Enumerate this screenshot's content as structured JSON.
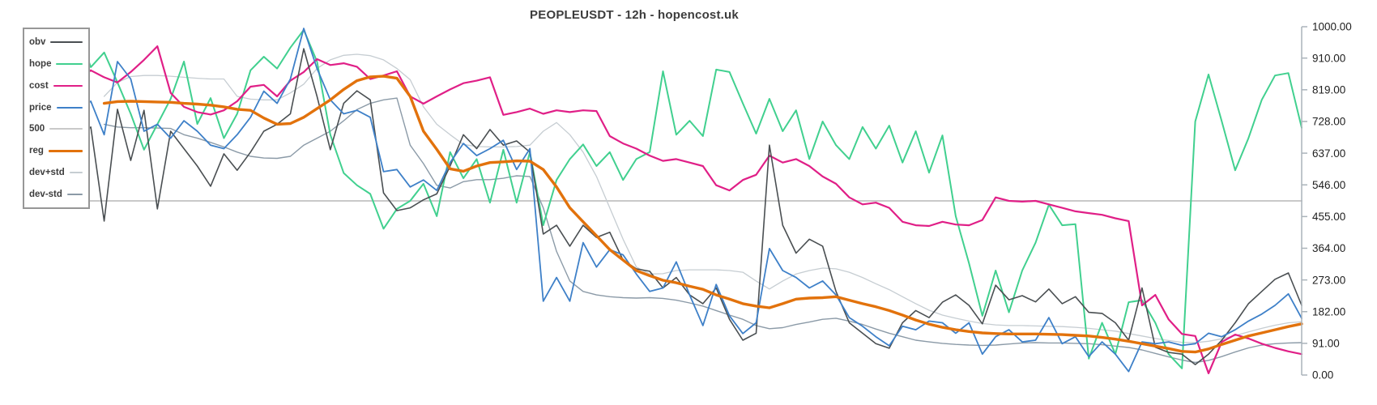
{
  "chart_data": {
    "type": "line",
    "title": "PEOPLEUSDT - 12h - hopencost.uk",
    "background": "#ffffff",
    "grid": false,
    "x_axis": {
      "labels_visible": false,
      "point_count": 97
    },
    "y_axis": {
      "side": "right",
      "min": 0,
      "max": 1000,
      "axis_color": "#aab3ba",
      "tick_values": [
        0,
        91,
        182,
        273,
        364,
        455,
        546,
        637,
        728,
        819,
        910,
        1000
      ],
      "tick_labels": [
        "0.00",
        "91.00",
        "182.00",
        "273.00",
        "364.00",
        "455.00",
        "546.00",
        "637.00",
        "728.00",
        "819.00",
        "910.00",
        "1000.00"
      ]
    },
    "legend": {
      "position": "top-left",
      "items": [
        "obv",
        "hope",
        "cost",
        "price",
        "500",
        "reg",
        "dev+std",
        "dev-std"
      ]
    },
    "series": [
      {
        "name": "obv",
        "color": "#4a4f52",
        "width": 1.6,
        "z": 6,
        "values": [
          650,
          580,
          620,
          560,
          680,
          712,
          442,
          763,
          616,
          760,
          477,
          700,
          650,
          600,
          542,
          635,
          588,
          640,
          700,
          720,
          750,
          937,
          800,
          647,
          780,
          816,
          790,
          523,
          472,
          480,
          503,
          520,
          600,
          690,
          650,
          705,
          660,
          672,
          640,
          405,
          430,
          370,
          430,
          395,
          410,
          330,
          305,
          298,
          250,
          280,
          230,
          205,
          250,
          160,
          100,
          120,
          660,
          430,
          350,
          390,
          370,
          240,
          150,
          120,
          90,
          77,
          150,
          185,
          165,
          209,
          230,
          200,
          147,
          258,
          216,
          228,
          210,
          247,
          205,
          225,
          180,
          177,
          150,
          100,
          250,
          80,
          65,
          60,
          30,
          60,
          100,
          150,
          205,
          240,
          275,
          293,
          200
        ]
      },
      {
        "name": "hope",
        "color": "#41d08f",
        "width": 2,
        "z": 4,
        "values": [
          940,
          900,
          985,
          940,
          990,
          884,
          926,
          840,
          750,
          647,
          720,
          793,
          900,
          721,
          795,
          680,
          750,
          875,
          914,
          880,
          940,
          991,
          900,
          690,
          580,
          545,
          520,
          420,
          477,
          500,
          549,
          456,
          640,
          565,
          620,
          495,
          647,
          495,
          640,
          430,
          560,
          620,
          662,
          600,
          640,
          560,
          620,
          640,
          872,
          690,
          730,
          686,
          877,
          870,
          780,
          693,
          793,
          700,
          760,
          620,
          728,
          660,
          620,
          712,
          650,
          716,
          610,
          700,
          581,
          688,
          456,
          321,
          170,
          300,
          180,
          300,
          380,
          489,
          430,
          433,
          47,
          150,
          60,
          209,
          215,
          150,
          60,
          19,
          728,
          863,
          728,
          588,
          680,
          790,
          860,
          867,
          710
        ]
      },
      {
        "name": "cost",
        "color": "#e01f87",
        "width": 2.2,
        "z": 5,
        "values": [
          885,
          860,
          880,
          855,
          845,
          875,
          855,
          840,
          870,
          905,
          944,
          810,
          770,
          755,
          748,
          760,
          786,
          828,
          833,
          800,
          845,
          870,
          907,
          890,
          895,
          885,
          850,
          860,
          872,
          800,
          779,
          800,
          820,
          838,
          845,
          855,
          747,
          755,
          765,
          750,
          760,
          755,
          760,
          758,
          686,
          665,
          650,
          630,
          615,
          620,
          610,
          600,
          545,
          530,
          560,
          575,
          630,
          610,
          620,
          600,
          570,
          549,
          510,
          490,
          495,
          480,
          440,
          430,
          428,
          440,
          432,
          430,
          445,
          510,
          500,
          498,
          500,
          490,
          480,
          470,
          465,
          460,
          450,
          442,
          200,
          230,
          160,
          118,
          112,
          5,
          95,
          116,
          105,
          90,
          78,
          68,
          60
        ]
      },
      {
        "name": "price",
        "color": "#3e80c8",
        "width": 1.8,
        "z": 7,
        "values": [
          760,
          728,
          690,
          740,
          760,
          786,
          690,
          900,
          850,
          700,
          720,
          680,
          730,
          700,
          660,
          650,
          690,
          740,
          815,
          780,
          850,
          995,
          880,
          790,
          750,
          760,
          740,
          584,
          590,
          540,
          560,
          530,
          610,
          665,
          630,
          650,
          674,
          590,
          650,
          212,
          280,
          212,
          380,
          310,
          360,
          345,
          290,
          240,
          250,
          325,
          230,
          142,
          260,
          170,
          119,
          150,
          363,
          300,
          280,
          250,
          270,
          230,
          165,
          140,
          110,
          84,
          140,
          130,
          155,
          150,
          120,
          150,
          60,
          110,
          130,
          95,
          100,
          165,
          90,
          110,
          53,
          95,
          60,
          10,
          95,
          90,
          95,
          85,
          90,
          120,
          110,
          130,
          155,
          175,
          200,
          233,
          163
        ]
      },
      {
        "name": "500",
        "color": "#c9c9c9",
        "width": 2,
        "z": 1,
        "constant": 500
      },
      {
        "name": "reg",
        "color": "#e2720c",
        "width": 3.4,
        "z": 8,
        "values": [
          null,
          null,
          null,
          null,
          null,
          null,
          780,
          785,
          786,
          785,
          784,
          783,
          780,
          778,
          775,
          770,
          763,
          760,
          738,
          720,
          722,
          740,
          765,
          790,
          820,
          845,
          856,
          858,
          852,
          800,
          700,
          648,
          592,
          585,
          600,
          610,
          612,
          615,
          614,
          590,
          540,
          480,
          440,
          400,
          360,
          330,
          300,
          285,
          272,
          265,
          255,
          246,
          230,
          218,
          205,
          198,
          193,
          205,
          218,
          221,
          222,
          225,
          215,
          205,
          196,
          185,
          172,
          158,
          146,
          137,
          130,
          125,
          121,
          119,
          118,
          118,
          118,
          117,
          116,
          114,
          112,
          108,
          103,
          97,
          90,
          83,
          76,
          68,
          66,
          75,
          88,
          100,
          112,
          121,
          130,
          139,
          147
        ]
      },
      {
        "name": "dev+std",
        "color": "#c6cdd2",
        "width": 1.3,
        "z": 2,
        "values": [
          null,
          null,
          null,
          null,
          null,
          null,
          800,
          840,
          857,
          860,
          860,
          858,
          855,
          852,
          850,
          850,
          800,
          792,
          790,
          790,
          810,
          835,
          880,
          905,
          918,
          921,
          917,
          905,
          880,
          848,
          770,
          720,
          690,
          662,
          656,
          655,
          655,
          656,
          660,
          700,
          725,
          690,
          640,
          570,
          480,
          390,
          310,
          290,
          291,
          300,
          302,
          302,
          302,
          300,
          295,
          270,
          247,
          270,
          290,
          300,
          307,
          305,
          295,
          280,
          262,
          245,
          225,
          205,
          186,
          172,
          163,
          155,
          148,
          144,
          142,
          142,
          141,
          140,
          139,
          137,
          134,
          130,
          126,
          119,
          112,
          105,
          99,
          94,
          93,
          97,
          104,
          113,
          124,
          134,
          143,
          150,
          153
        ]
      },
      {
        "name": "dev-std",
        "color": "#8b9aa7",
        "width": 1.4,
        "z": 3,
        "values": [
          null,
          null,
          null,
          null,
          null,
          null,
          720,
          712,
          710,
          710,
          709,
          708,
          690,
          680,
          668,
          655,
          640,
          628,
          623,
          622,
          628,
          660,
          680,
          700,
          730,
          762,
          780,
          790,
          795,
          660,
          607,
          545,
          537,
          555,
          561,
          561,
          565,
          572,
          570,
          480,
          355,
          270,
          240,
          230,
          225,
          222,
          221,
          222,
          220,
          215,
          207,
          198,
          185,
          172,
          160,
          142,
          133,
          136,
          145,
          152,
          160,
          163,
          155,
          145,
          132,
          120,
          110,
          100,
          95,
          91,
          88,
          86,
          85,
          86,
          89,
          92,
          93,
          92,
          92,
          91,
          90,
          87,
          83,
          79,
          72,
          62,
          52,
          43,
          36,
          42,
          53,
          66,
          78,
          86,
          90,
          92,
          93
        ]
      }
    ]
  }
}
